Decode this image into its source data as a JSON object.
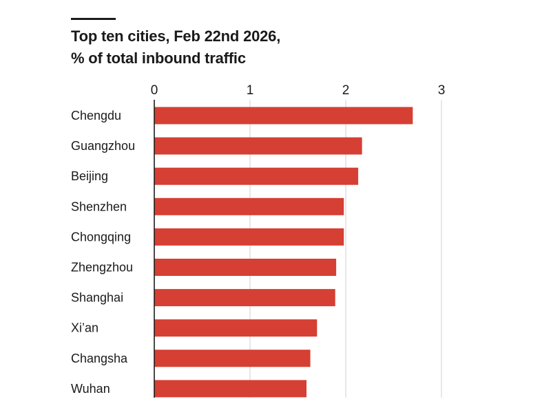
{
  "title_line1": "Top ten cities, Feb 22nd 2026,",
  "title_line2": "% of total inbound traffic",
  "colors": {
    "bar": "#d63f33",
    "grid": "#d7d7d7",
    "axis": "#1a1a1a",
    "rule": "#1a1a1a"
  },
  "chart_data": {
    "type": "bar",
    "orientation": "horizontal",
    "title": "Top ten cities, Feb 22nd 2026, % of total inbound traffic",
    "categories": [
      "Chengdu",
      "Guangzhou",
      "Beijing",
      "Shenzhen",
      "Chongqing",
      "Zhengzhou",
      "Shanghai",
      "Xi’an",
      "Changsha",
      "Wuhan"
    ],
    "values": [
      2.7,
      2.17,
      2.13,
      1.98,
      1.98,
      1.9,
      1.89,
      1.7,
      1.63,
      1.59
    ],
    "xlim": [
      0,
      3
    ],
    "xticks": [
      "0",
      "1",
      "2",
      "3"
    ],
    "tick_position": "top",
    "grid": true
  }
}
